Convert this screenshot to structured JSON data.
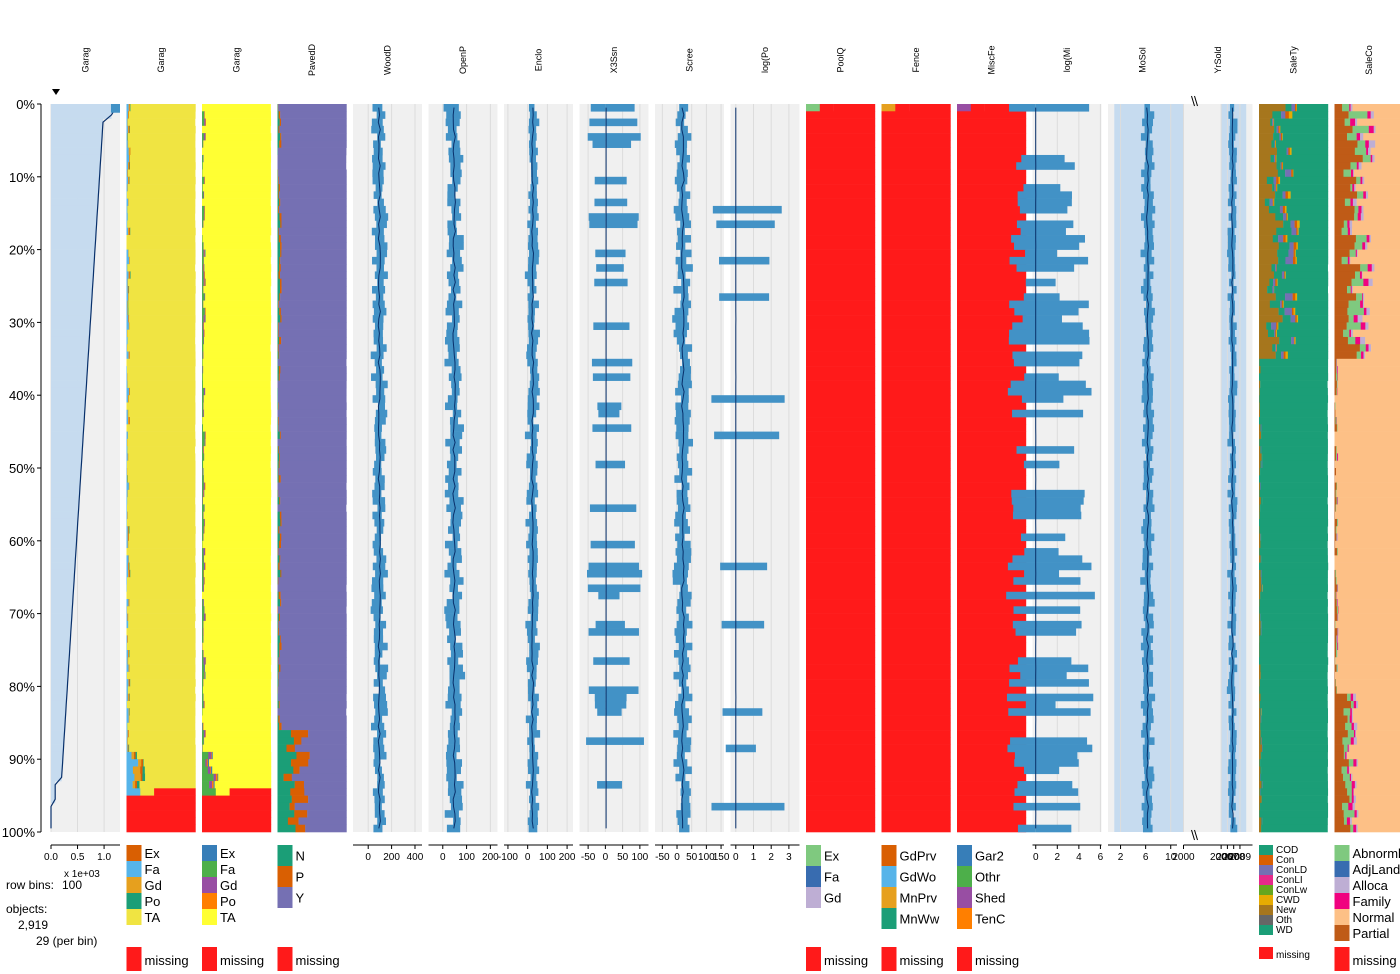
{
  "chart_data": {
    "type": "tableplot",
    "y_ticks": [
      "0%",
      "10%",
      "20%",
      "30%",
      "40%",
      "50%",
      "60%",
      "70%",
      "80%",
      "90%",
      "100%"
    ],
    "info": {
      "row_bins_label": "row bins:",
      "row_bins": "100",
      "objects_label": "objects:",
      "objects": "2,919",
      "per_bin": "29 (per bin)",
      "scale_note": "x 1e+03"
    },
    "columns": [
      {
        "key": "garagearea",
        "header": "Garag",
        "kind": "num",
        "sorted": true,
        "range": [
          0,
          1.3
        ],
        "ticks": [
          {
            "v": 0,
            "l": "0.0"
          },
          {
            "v": 0.5,
            "l": "0.5"
          },
          {
            "v": 1.0,
            "l": "1.0"
          }
        ]
      },
      {
        "key": "garagequal",
        "header": "Garag",
        "kind": "cat",
        "cats": [
          {
            "n": "Ex",
            "c": "#d95f02"
          },
          {
            "n": "Fa",
            "c": "#56b4e9"
          },
          {
            "n": "Gd",
            "c": "#e6a01e"
          },
          {
            "n": "Po",
            "c": "#1b9e77"
          },
          {
            "n": "TA",
            "c": "#f0e442"
          }
        ],
        "missing": {
          "n": "missing",
          "c": "#ff1a1a"
        },
        "main": "TA",
        "minor": [
          "Fa",
          "Gd",
          "Ex",
          "Po"
        ],
        "missStart": 94
      },
      {
        "key": "garagecond",
        "header": "Garag",
        "kind": "cat",
        "cats": [
          {
            "n": "Ex",
            "c": "#377eb8"
          },
          {
            "n": "Fa",
            "c": "#4daf4a"
          },
          {
            "n": "Gd",
            "c": "#984ea3"
          },
          {
            "n": "Po",
            "c": "#ff7f00"
          },
          {
            "n": "TA",
            "c": "#ffff33"
          }
        ],
        "missing": {
          "n": "missing",
          "c": "#ff1a1a"
        },
        "main": "TA",
        "minor": [
          "Fa",
          "Gd",
          "Po",
          "Ex"
        ],
        "missStart": 94
      },
      {
        "key": "paveddrive",
        "header": "PavedD",
        "kind": "cat",
        "cats": [
          {
            "n": "N",
            "c": "#1b9e77"
          },
          {
            "n": "P",
            "c": "#d95f02"
          },
          {
            "n": "Y",
            "c": "#7570b3"
          }
        ],
        "missing": {
          "n": "missing",
          "c": "#ff1a1a"
        },
        "main": "Y",
        "minor": [
          "N",
          "P"
        ],
        "missStart": 101
      },
      {
        "key": "wooddecksf",
        "header": "WoodD",
        "kind": "num",
        "range": [
          -130,
          460
        ],
        "mean": 95,
        "sd": 38,
        "ticks": [
          {
            "v": 0,
            "l": "0"
          },
          {
            "v": 200,
            "l": "200"
          },
          {
            "v": 400,
            "l": "400"
          }
        ]
      },
      {
        "key": "openporchsf",
        "header": "OpenP",
        "kind": "num",
        "range": [
          -60,
          230
        ],
        "mean": 48,
        "sd": 22,
        "ticks": [
          {
            "v": 0,
            "l": "0"
          },
          {
            "v": 100,
            "l": "100"
          },
          {
            "v": 200,
            "l": "200"
          }
        ]
      },
      {
        "key": "enclosedporch",
        "header": "Enclo",
        "kind": "num",
        "range": [
          -120,
          230
        ],
        "mean": 25,
        "sd": 20,
        "ticks": [
          {
            "v": -100,
            "l": "-100"
          },
          {
            "v": 0,
            "l": "0"
          },
          {
            "v": 100,
            "l": "100"
          },
          {
            "v": 200,
            "l": "200"
          }
        ]
      },
      {
        "key": "x3ssnporch",
        "header": "X3Ssn",
        "kind": "num",
        "range": [
          -75,
          125
        ],
        "mean": 2,
        "sd": 0,
        "sparse": 0.35,
        "ticks": [
          {
            "v": -50,
            "l": "-50"
          },
          {
            "v": 0,
            "l": "0"
          },
          {
            "v": 50,
            "l": "50"
          },
          {
            "v": 100,
            "l": "100"
          }
        ]
      },
      {
        "key": "screenporch",
        "header": "Scree",
        "kind": "num",
        "range": [
          -75,
          160
        ],
        "mean": 20,
        "sd": 18,
        "ticks": [
          {
            "v": -50,
            "l": "-50"
          },
          {
            "v": 0,
            "l": "0"
          },
          {
            "v": 50,
            "l": "50"
          },
          {
            "v": 100,
            "l": "100"
          },
          {
            "v": 150,
            "l": "150"
          }
        ]
      },
      {
        "key": "logpoolarea",
        "header": "log(Po",
        "kind": "num",
        "range": [
          -0.3,
          3.6
        ],
        "mean": 0,
        "sd": 0,
        "sparse": 0.1,
        "ticks": [
          {
            "v": 0,
            "l": "0"
          },
          {
            "v": 1,
            "l": "1"
          },
          {
            "v": 2,
            "l": "2"
          },
          {
            "v": 3,
            "l": "3"
          }
        ]
      },
      {
        "key": "poolqc",
        "header": "PoolQ",
        "kind": "cat",
        "cats": [
          {
            "n": "Ex",
            "c": "#7fc97f"
          },
          {
            "n": "Fa",
            "c": "#386cb0"
          },
          {
            "n": "Gd",
            "c": "#beaed4"
          }
        ],
        "missing": {
          "n": "missing",
          "c": "#ff1a1a"
        },
        "main": "missing",
        "minor": [
          "Ex",
          "Gd",
          "Fa"
        ],
        "missStart": 0,
        "rare": 0.03
      },
      {
        "key": "fence",
        "header": "Fence",
        "kind": "cat",
        "cats": [
          {
            "n": "GdPrv",
            "c": "#d95f02"
          },
          {
            "n": "GdWo",
            "c": "#56b4e9"
          },
          {
            "n": "MnPrv",
            "c": "#e6a01e"
          },
          {
            "n": "MnWw",
            "c": "#1b9e77"
          }
        ],
        "missing": {
          "n": "missing",
          "c": "#ff1a1a"
        },
        "main": "missing",
        "minor": [
          "MnPrv",
          "GdPrv",
          "GdWo",
          "MnWw"
        ],
        "missStart": 0,
        "rare": 0.6
      },
      {
        "key": "miscfeature",
        "header": "MiscFe",
        "kind": "cat",
        "cats": [
          {
            "n": "Gar2",
            "c": "#377eb8"
          },
          {
            "n": "Othr",
            "c": "#4daf4a"
          },
          {
            "n": "Shed",
            "c": "#984ea3"
          },
          {
            "n": "TenC",
            "c": "#ff7f00"
          }
        ],
        "missing": {
          "n": "missing",
          "c": "#ff1a1a"
        },
        "main": "missing",
        "minor": [
          "Shed",
          "Gar2"
        ],
        "missStart": 0,
        "rare": 0.12
      },
      {
        "key": "logmiscval",
        "header": "log(Mi",
        "kind": "num",
        "range": [
          -0.3,
          6.1
        ],
        "mean": 0,
        "sd": 0,
        "sparse": 0.55,
        "ticks": [
          {
            "v": 0,
            "l": "0"
          },
          {
            "v": 2,
            "l": "2"
          },
          {
            "v": 4,
            "l": "4"
          },
          {
            "v": 6,
            "l": "6"
          }
        ]
      },
      {
        "key": "mosold",
        "header": "MoSol",
        "kind": "num",
        "range": [
          0,
          11
        ],
        "mean": 6.3,
        "sd": 0.6,
        "band": [
          1,
          12
        ],
        "ticks": [
          {
            "v": 2,
            "l": "2"
          },
          {
            "v": 6,
            "l": "6"
          },
          {
            "v": 10,
            "l": "10"
          }
        ]
      },
      {
        "key": "yrsold",
        "header": "YrSold",
        "kind": "num",
        "broken": true,
        "range": [
          2000,
          2011
        ],
        "mean": 2007.8,
        "sd": 0.45,
        "band": [
          2006,
          2010
        ],
        "ticks": [
          {
            "v": 2000,
            "l": "2000"
          },
          {
            "v": 2006,
            "l": "2006"
          },
          {
            "v": 2007,
            "l": "2007"
          },
          {
            "v": 2008,
            "l": "2008"
          },
          {
            "v": 2009,
            "l": "2009"
          }
        ]
      },
      {
        "key": "saletype",
        "header": "SaleTy",
        "kind": "cat",
        "smallLegend": true,
        "cats": [
          {
            "n": "COD",
            "c": "#1b9e77"
          },
          {
            "n": "Con",
            "c": "#d95f02"
          },
          {
            "n": "ConLD",
            "c": "#7570b3"
          },
          {
            "n": "ConLI",
            "c": "#e7298a"
          },
          {
            "n": "ConLw",
            "c": "#66a61e"
          },
          {
            "n": "CWD",
            "c": "#e6ab02"
          },
          {
            "n": "New",
            "c": "#a6761d"
          },
          {
            "n": "Oth",
            "c": "#666666"
          },
          {
            "n": "WD",
            "c": "#1b9e77"
          }
        ],
        "missing": {
          "n": "missing",
          "c": "#ff1a1a"
        },
        "main": "WD",
        "minor": [
          "New",
          "COD",
          "ConLD",
          "Con",
          "CWD"
        ],
        "missStart": 101,
        "topHeavy": "New"
      },
      {
        "key": "salecondition",
        "header": "SaleCo",
        "kind": "cat",
        "cats": [
          {
            "n": "Abnorml",
            "c": "#7fc97f"
          },
          {
            "n": "AdjLand",
            "c": "#386cb0"
          },
          {
            "n": "Alloca",
            "c": "#beaed4"
          },
          {
            "n": "Family",
            "c": "#f0027f"
          },
          {
            "n": "Normal",
            "c": "#fdc086"
          },
          {
            "n": "Partial",
            "c": "#bf5b17"
          }
        ],
        "missing": {
          "n": "missing",
          "c": "#ff1a1a"
        },
        "main": "Normal",
        "minor": [
          "Partial",
          "Abnorml",
          "Family",
          "Alloca"
        ],
        "missStart": 101,
        "topHeavy": "Partial",
        "bottomHeavy": "Abnorml"
      }
    ]
  }
}
